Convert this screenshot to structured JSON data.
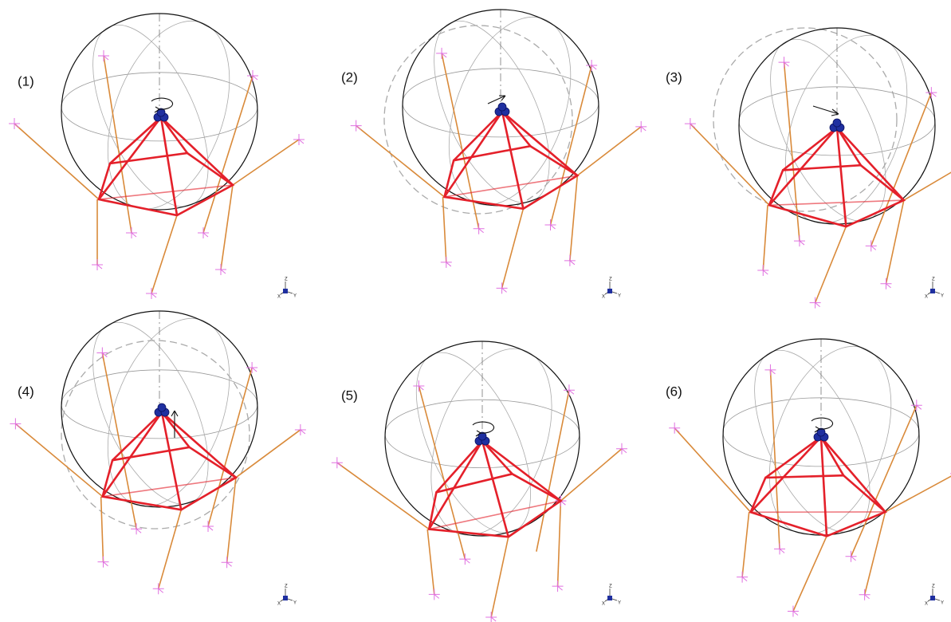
{
  "panels": [
    {
      "label": "(1)",
      "axes": {
        "z": "Z",
        "x": "X",
        "y": "Y"
      }
    },
    {
      "label": "(2)",
      "axes": {
        "z": "Z",
        "x": "X",
        "y": "Y"
      }
    },
    {
      "label": "(3)",
      "axes": {
        "z": "Z",
        "x": "X",
        "y": "Y"
      }
    },
    {
      "label": "(4)",
      "axes": {
        "z": "Z",
        "x": "X",
        "y": "Y"
      }
    },
    {
      "label": "(5)",
      "axes": {
        "z": "Z",
        "x": "X",
        "y": "Y"
      }
    },
    {
      "label": "(6)",
      "axes": {
        "z": "Z",
        "x": "X",
        "y": "Y"
      }
    }
  ]
}
